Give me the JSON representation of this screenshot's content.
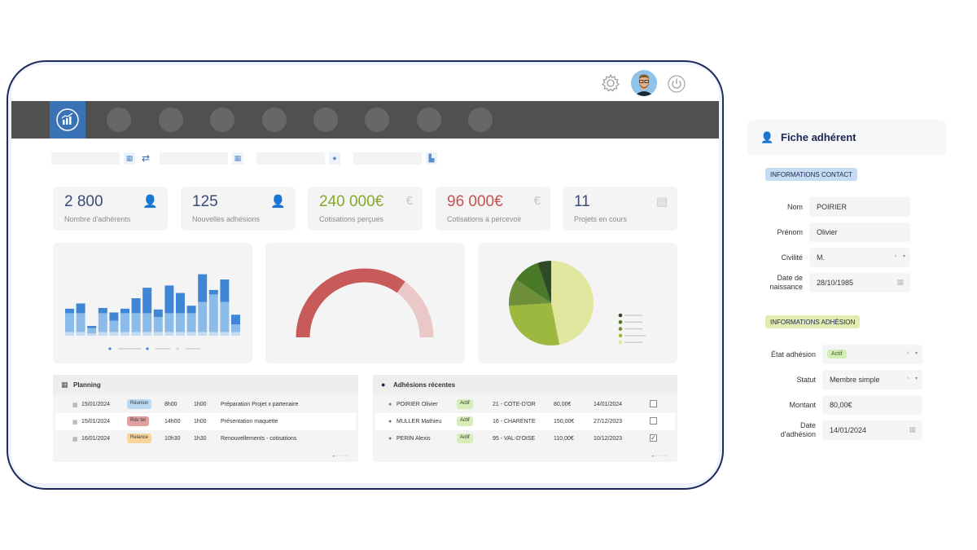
{
  "kpis": [
    {
      "value": "2 800",
      "label": "Nombre d'adhérents",
      "color": "#3b4a78",
      "icon": "user-icon"
    },
    {
      "value": "125",
      "label": "Nouvelles adhésions",
      "color": "#3b4a78",
      "icon": "user-icon"
    },
    {
      "value": "240 000€",
      "label": "Cotisations perçues",
      "color": "#86a82a",
      "icon": "euro-icon"
    },
    {
      "value": "96 000€",
      "label": "Cotisations à percevoir",
      "color": "#c85050",
      "icon": "euro-icon"
    },
    {
      "value": "11",
      "label": "Projets en cours",
      "color": "#3b4a78",
      "icon": "folder-icon"
    }
  ],
  "bar_chart": {
    "stacks": [
      [
        5,
        25,
        6
      ],
      [
        5,
        25,
        13
      ],
      [
        3,
        7,
        3
      ],
      [
        5,
        25,
        7
      ],
      [
        5,
        15,
        11
      ],
      [
        5,
        25,
        6
      ],
      [
        5,
        25,
        20
      ],
      [
        5,
        25,
        34
      ],
      [
        5,
        20,
        10
      ],
      [
        5,
        25,
        37
      ],
      [
        5,
        25,
        27
      ],
      [
        5,
        25,
        10
      ],
      [
        5,
        40,
        37
      ],
      [
        5,
        50,
        6
      ],
      [
        5,
        40,
        30
      ],
      [
        5,
        10,
        13
      ]
    ],
    "colors": [
      "#c5dbf2",
      "#8bbce9",
      "#3f86d6"
    ]
  },
  "gauge": {
    "value": 0.7,
    "label": " ",
    "colors": [
      "#c95a5a",
      "#ebc8c8"
    ]
  },
  "pie": {
    "slices": [
      {
        "value": 45,
        "color": "#e1e69e"
      },
      {
        "value": 26,
        "color": "#9db83e"
      },
      {
        "value": 10,
        "color": "#6f8f3a"
      },
      {
        "value": 10,
        "color": "#4a7a27"
      },
      {
        "value": 5,
        "color": "#2f4a24"
      }
    ],
    "legend_colors": [
      "#2f4a24",
      "#4a7a27",
      "#6f8f3a",
      "#9db83e",
      "#e1e69e"
    ]
  },
  "planning": {
    "title": "Planning",
    "rows": [
      {
        "date": "15/01/2024",
        "type": "Réunion",
        "type_bg": "#bcd9f2",
        "start": "8h00",
        "duration": "1h00",
        "desc": "Préparation Projet x partenaire"
      },
      {
        "date": "15/01/2024",
        "type": "Rdv tel",
        "type_bg": "#e0a0a0",
        "start": "14h00",
        "duration": "1h00",
        "desc": "Présentation maquette"
      },
      {
        "date": "16/01/2024",
        "type": "Relance",
        "type_bg": "#f8d59a",
        "start": "10h30",
        "duration": "1h30",
        "desc": "Renouvellements - cotisations"
      }
    ]
  },
  "adhesions": {
    "title": "Adhésions récentes",
    "rows": [
      {
        "name": "POIRIER Olivier",
        "status": "Actif",
        "dept": "21 - COTE-D'OR",
        "amount": "80,00€",
        "date": "14/01/2024",
        "checked": false
      },
      {
        "name": "MULLER Mathieu",
        "status": "Actif",
        "dept": "16 - CHARENTE",
        "amount": "150,00€",
        "date": "27/12/2023",
        "checked": false
      },
      {
        "name": "PERIN Alexis",
        "status": "Actif",
        "dept": "95 - VAL-D'OISE",
        "amount": "110,00€",
        "date": "10/12/2023",
        "checked": true
      }
    ]
  },
  "fiche": {
    "title": "Fiche adhérent",
    "contact_section": "INFORMATIONS CONTACT",
    "contact_section_color": "#c6dcf3",
    "nom_label": "Nom",
    "nom": "POIRIER",
    "prenom_label": "Prénom",
    "prenom": "Olivier",
    "civilite_label": "Civilité",
    "civilite": "M.",
    "naissance_label": "Date de naissance",
    "naissance": "28/10/1985",
    "adhesion_section": "INFORMATIONS ADHÉSION",
    "adhesion_section_color": "#e3ebb0",
    "etat_label": "État adhésion",
    "etat": "Actif",
    "statut_label": "Statut",
    "statut": "Membre simple",
    "montant_label": "Montant",
    "montant": "80,00€",
    "date_adhesion_label": "Date d'adhésion",
    "date_adhesion": "14/01/2024"
  }
}
